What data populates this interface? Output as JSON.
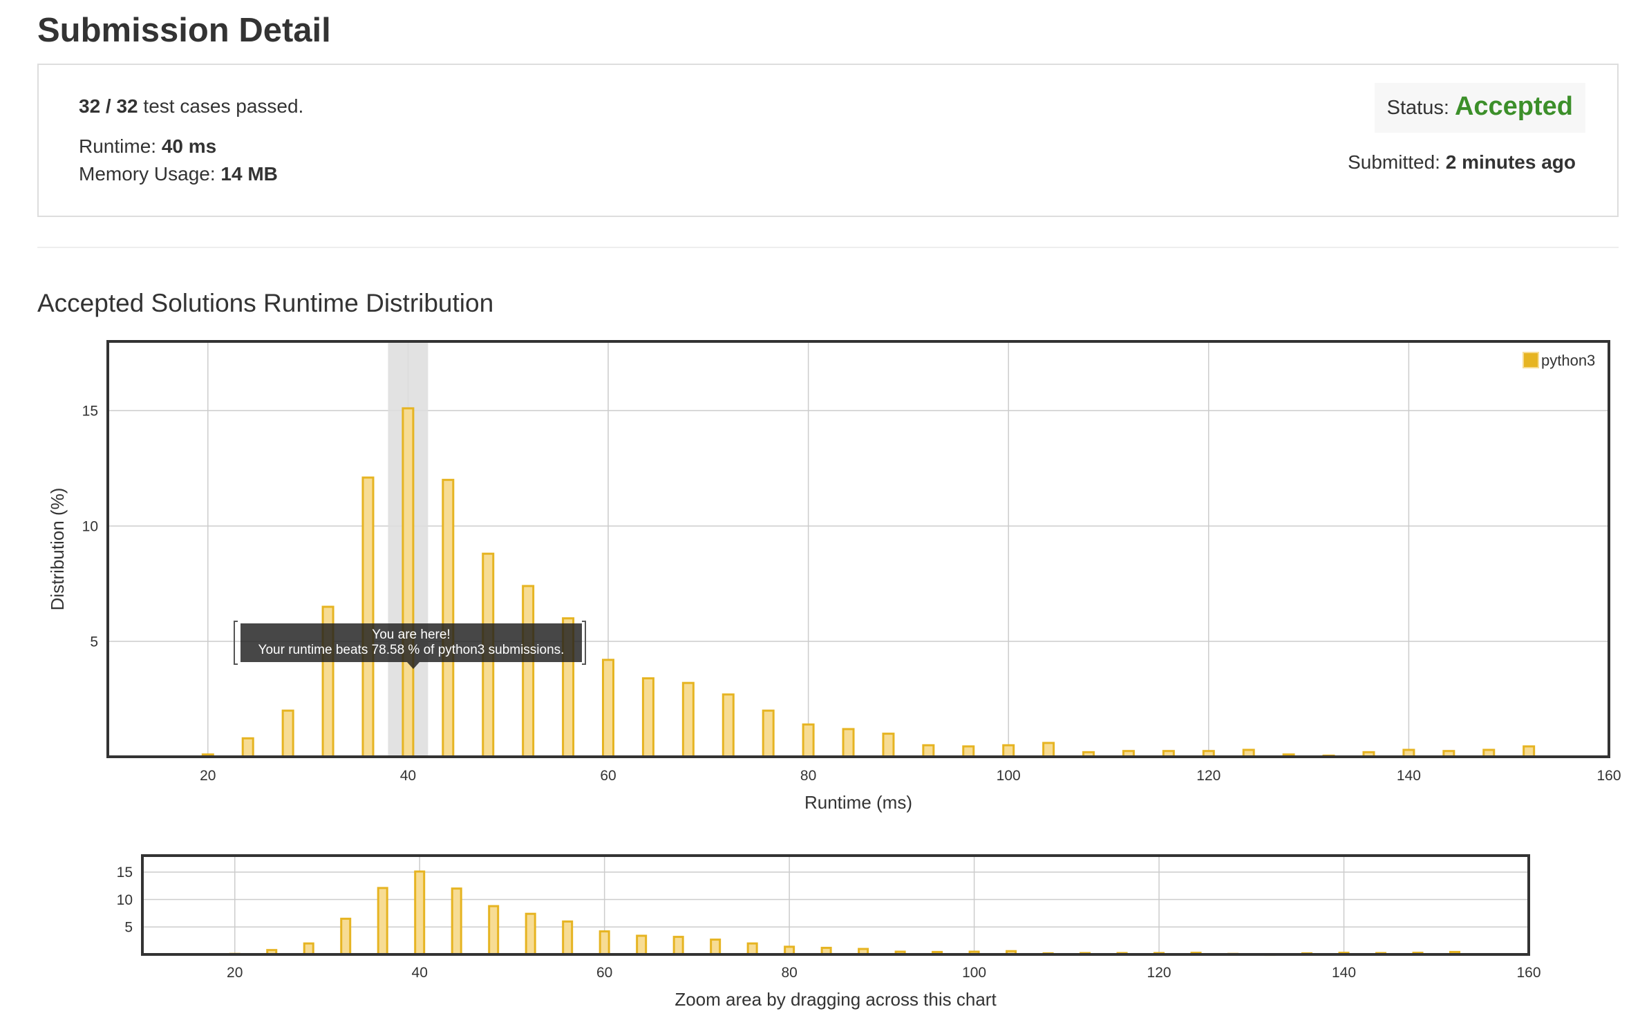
{
  "page_title": "Submission Detail",
  "summary": {
    "test_cases_passed": "32 / 32",
    "test_cases_suffix": " test cases passed.",
    "runtime_label": "Runtime: ",
    "runtime_value": "40 ms",
    "memory_label": "Memory Usage: ",
    "memory_value": "14 MB",
    "status_label": "Status: ",
    "status_value": "Accepted",
    "submitted_label": "Submitted: ",
    "submitted_value": "2 minutes ago"
  },
  "section_title": "Accepted Solutions Runtime Distribution",
  "tooltip": {
    "line1": "You are here!",
    "line2": "Your runtime beats 78.58 % of python3 submissions."
  },
  "colors": {
    "bar_fill": "#f7dc94",
    "bar_stroke": "#e6b422",
    "accepted_green": "#3c8f2a",
    "highlight_band": "#dddddd"
  },
  "chart_data": [
    {
      "type": "bar",
      "xlabel": "Runtime (ms)",
      "ylabel": "Distribution (%)",
      "xlim": [
        10,
        160
      ],
      "ylim": [
        0,
        18
      ],
      "xticks": [
        "20",
        "40",
        "60",
        "80",
        "100",
        "120",
        "140",
        "160"
      ],
      "yticks": [
        "5",
        "10",
        "15"
      ],
      "grid": true,
      "legend_position": "top-right",
      "series": [
        {
          "name": "python3",
          "x": [
            20,
            24,
            28,
            32,
            36,
            40,
            44,
            48,
            52,
            56,
            60,
            64,
            68,
            72,
            76,
            80,
            84,
            88,
            92,
            96,
            100,
            104,
            108,
            112,
            116,
            120,
            124,
            128,
            132,
            136,
            140,
            144,
            148,
            152
          ],
          "values": [
            0.1,
            0.8,
            2.0,
            6.5,
            12.1,
            15.1,
            12.0,
            8.8,
            7.4,
            6.0,
            4.2,
            3.4,
            3.2,
            2.7,
            2.0,
            1.4,
            1.2,
            1.0,
            0.5,
            0.45,
            0.5,
            0.6,
            0.2,
            0.25,
            0.25,
            0.25,
            0.3,
            0.1,
            0.05,
            0.2,
            0.3,
            0.25,
            0.3,
            0.45
          ]
        }
      ],
      "highlight_x": 40
    },
    {
      "type": "bar",
      "xlabel": "Zoom area by dragging across this chart",
      "xlim": [
        10,
        160
      ],
      "ylim": [
        0,
        18
      ],
      "xticks": [
        "20",
        "40",
        "60",
        "80",
        "100",
        "120",
        "140",
        "160"
      ],
      "yticks": [
        "5",
        "10",
        "15"
      ],
      "grid": true,
      "series_ref": "python3"
    }
  ]
}
